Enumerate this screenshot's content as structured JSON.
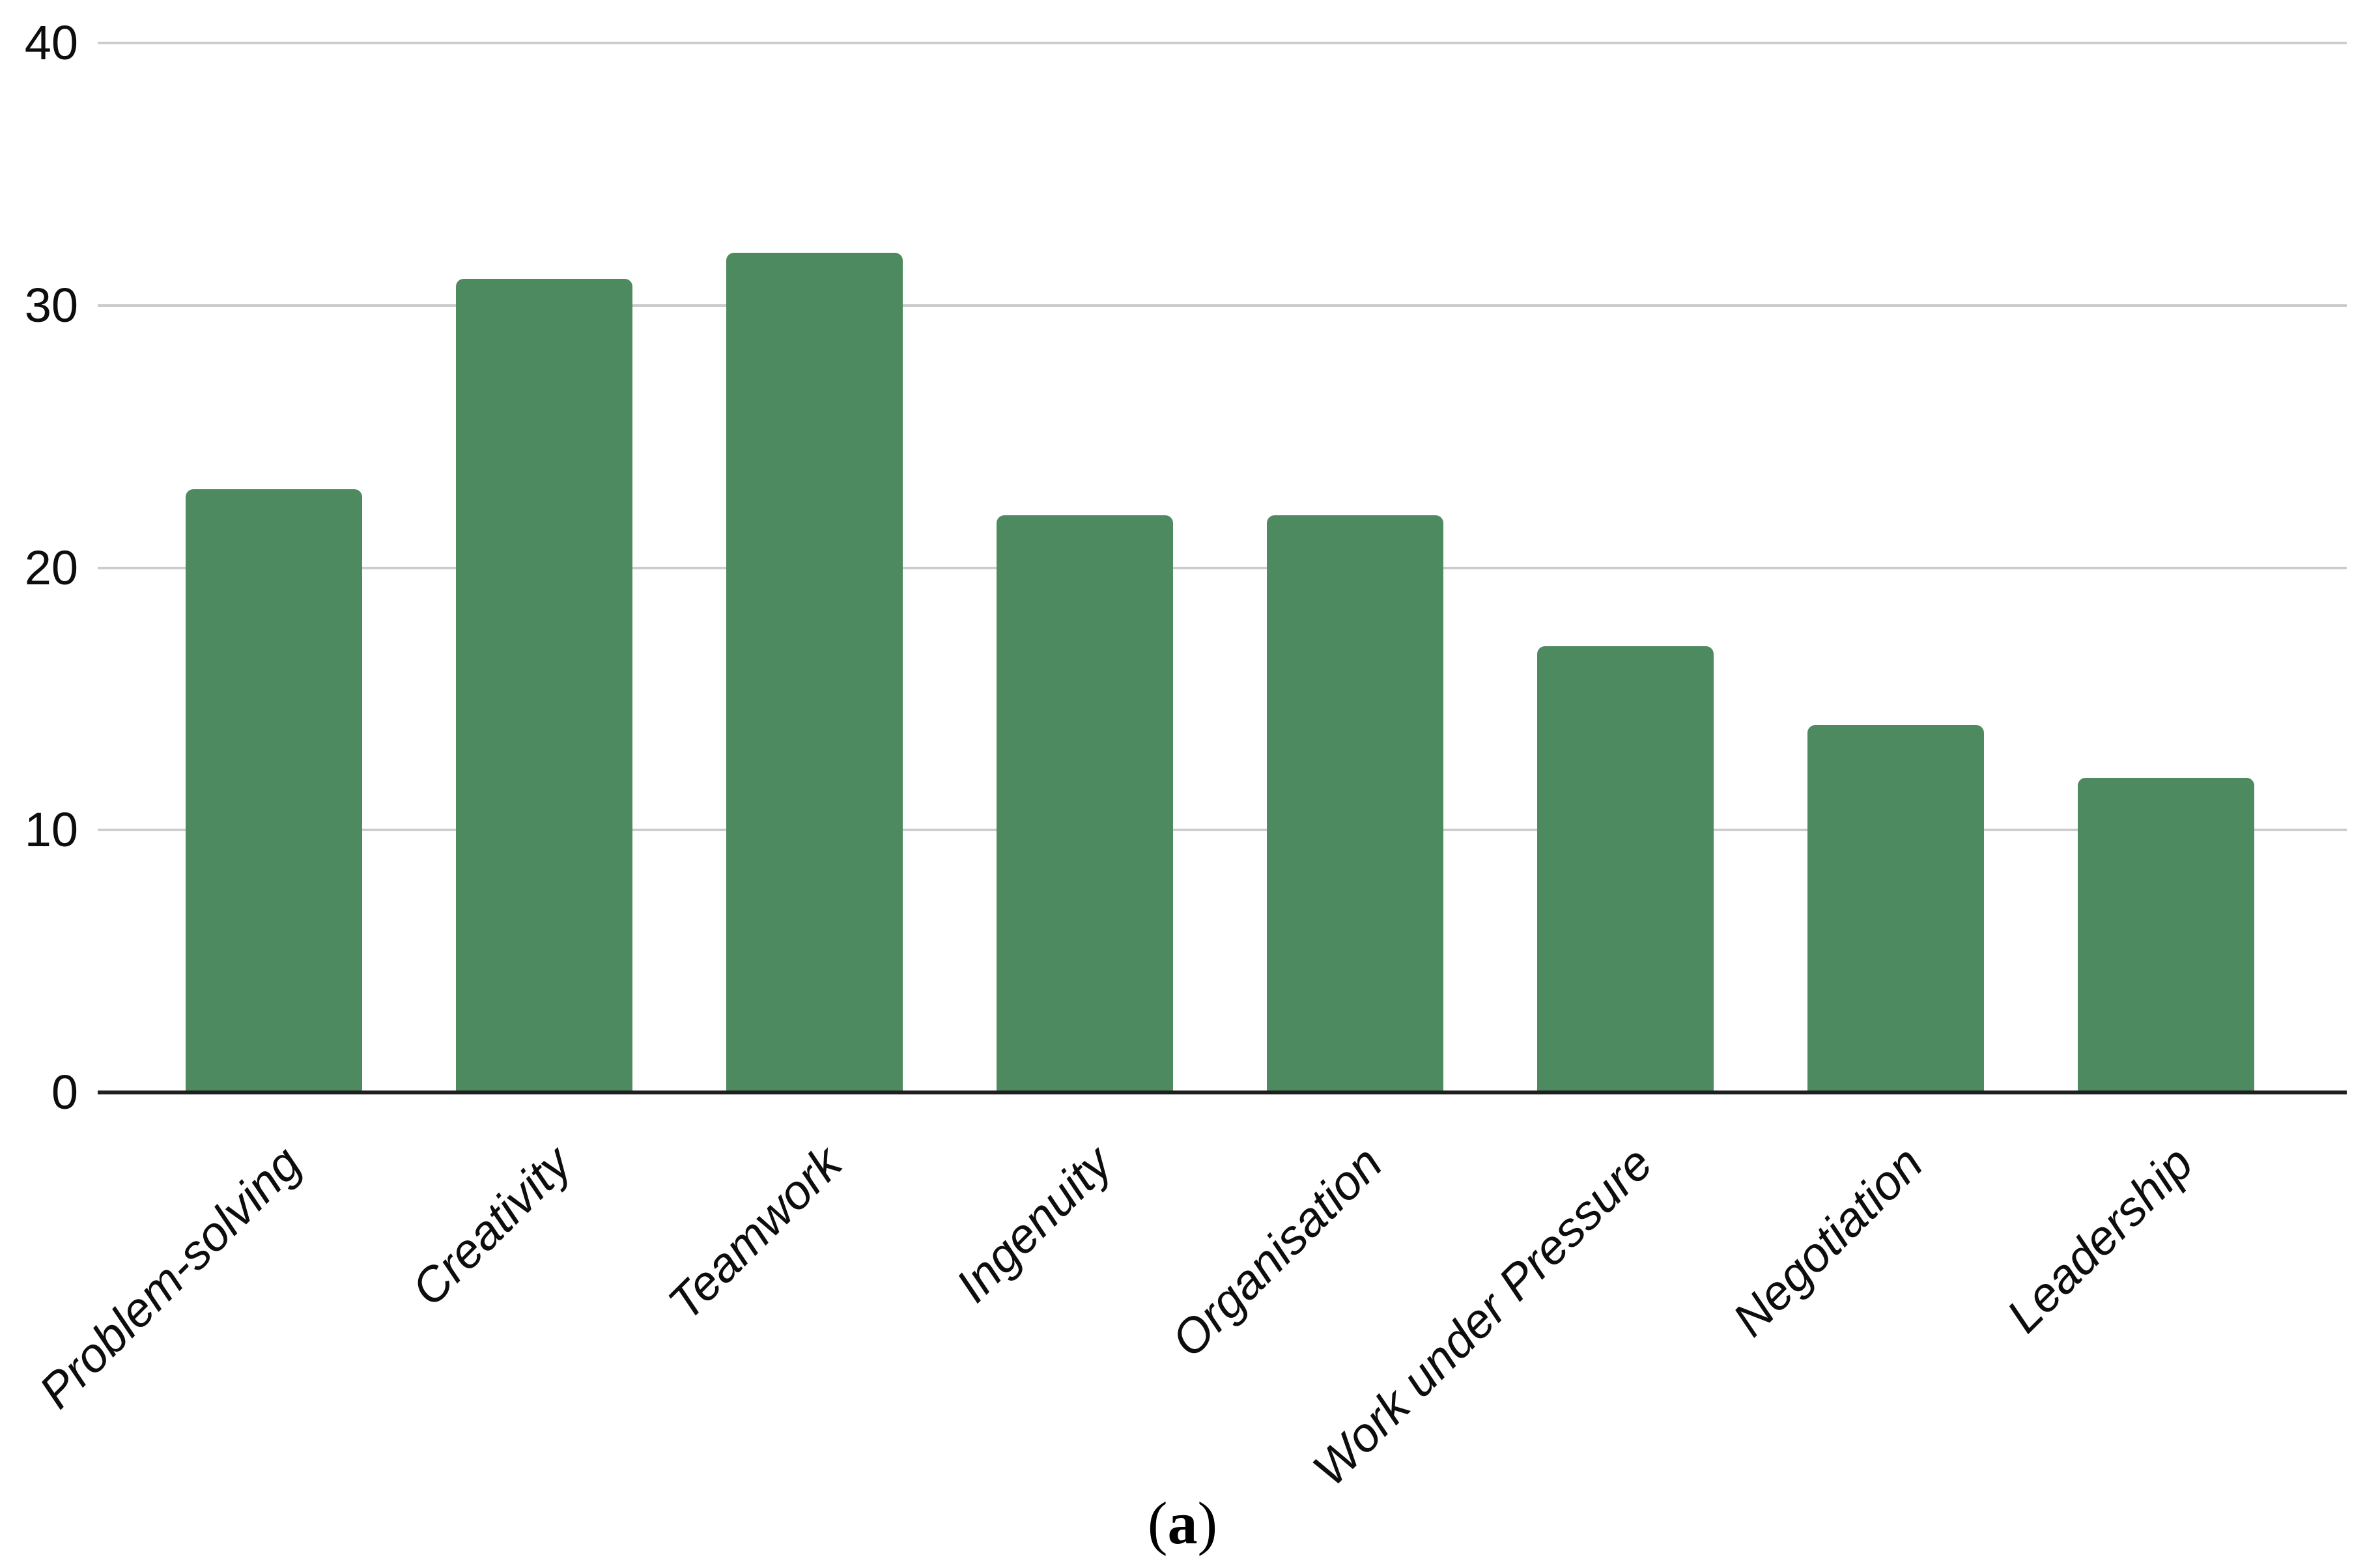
{
  "chart_data": {
    "type": "bar",
    "title": "",
    "xlabel": "",
    "ylabel": "",
    "categories": [
      "Problem-solving",
      "Creativity",
      "Teamwork",
      "Ingenuity",
      "Organisation",
      "Work under Pressure",
      "Negotiation",
      "Leadership"
    ],
    "values": [
      23,
      31,
      32,
      22,
      22,
      17,
      14,
      12
    ],
    "ylim": [
      0,
      40
    ],
    "yticks": [
      0,
      10,
      20,
      30,
      40
    ],
    "grid": true,
    "legend": "none",
    "bar_color": "#4d8a60",
    "gridline_color": "#cccccc",
    "axis_line_color": "#1f1f1f",
    "tick_label_color": "#0d0d0d"
  },
  "caption": {
    "open": "(",
    "letter": "a",
    "close": ")"
  }
}
